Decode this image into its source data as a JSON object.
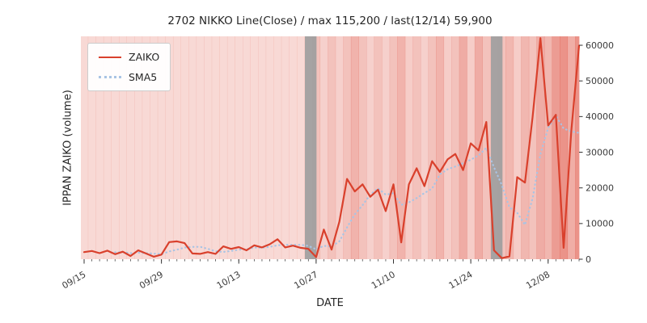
{
  "chart_data": {
    "type": "line",
    "title": "2702 NIKKO Line(Close) / max 115,200 / last(12/14) 59,900",
    "xlabel": "DATE",
    "ylabel": "IPPAN ZAIKO (volume)",
    "ylim": [
      0,
      62500
    ],
    "yticks": [
      0,
      10000,
      20000,
      30000,
      40000,
      50000,
      60000
    ],
    "xtick_indices": [
      0,
      10,
      20,
      30,
      40,
      50,
      60
    ],
    "grid": false,
    "legend_position": "upper-left",
    "x": [
      "09/15",
      "09/16",
      "09/17",
      "09/20",
      "09/21",
      "09/22",
      "09/23",
      "09/24",
      "09/27",
      "09/28",
      "09/29",
      "09/30",
      "10/01",
      "10/04",
      "10/05",
      "10/06",
      "10/07",
      "10/08",
      "10/11",
      "10/12",
      "10/13",
      "10/14",
      "10/15",
      "10/18",
      "10/19",
      "10/20",
      "10/21",
      "10/22",
      "10/25",
      "10/26",
      "10/27",
      "10/28",
      "10/29",
      "11/01",
      "11/02",
      "11/03",
      "11/04",
      "11/05",
      "11/08",
      "11/09",
      "11/10",
      "11/11",
      "11/12",
      "11/15",
      "11/16",
      "11/17",
      "11/18",
      "11/19",
      "11/22",
      "11/23",
      "11/24",
      "11/25",
      "11/26",
      "11/29",
      "11/30",
      "12/01",
      "12/02",
      "12/03",
      "12/06",
      "12/07",
      "12/08",
      "12/09",
      "12/10",
      "12/13",
      "12/14"
    ],
    "series": [
      {
        "name": "ZAIKO",
        "color": "#d9402c",
        "style": "solid",
        "values": [
          2000,
          2300,
          1700,
          2400,
          1400,
          2100,
          900,
          2500,
          1600,
          700,
          1300,
          4800,
          5000,
          4500,
          1600,
          1500,
          2000,
          1500,
          3600,
          2900,
          3400,
          2500,
          3900,
          3300,
          4200,
          5600,
          3300,
          3800,
          3200,
          2900,
          600,
          8300,
          2700,
          10500,
          22500,
          19000,
          21000,
          17500,
          19500,
          13500,
          21000,
          4700,
          21000,
          25500,
          20500,
          27500,
          24500,
          28000,
          29500,
          25000,
          32500,
          30500,
          38500,
          2500,
          300,
          800,
          23000,
          21500,
          40000,
          62000,
          37500,
          40500,
          3200,
          36000,
          59900
        ]
      },
      {
        "name": "SMA5",
        "color": "#a9c4e4",
        "style": "dotted",
        "values": [
          null,
          null,
          null,
          null,
          1960,
          1980,
          1700,
          1860,
          1700,
          1560,
          1400,
          2180,
          2680,
          3260,
          3440,
          3480,
          2920,
          2220,
          2040,
          2300,
          2680,
          2780,
          3260,
          3200,
          3460,
          3900,
          4060,
          4040,
          4020,
          3760,
          2760,
          3760,
          3540,
          5000,
          8920,
          12600,
          15140,
          18100,
          19900,
          18100,
          18500,
          15240,
          15940,
          17140,
          18540,
          19840,
          23800,
          25200,
          26000,
          26900,
          27900,
          29100,
          31200,
          25800,
          20860,
          14520,
          13020,
          9620,
          17120,
          29460,
          36800,
          40300,
          36640,
          35840,
          35420
        ]
      }
    ],
    "background": {
      "band_color": "#dd4b3a",
      "band_alphas": [
        0.21,
        0.21,
        0.21,
        0.21,
        0.21,
        0.21,
        0.21,
        0.21,
        0.21,
        0.21,
        0.21,
        0.21,
        0.21,
        0.21,
        0.21,
        0.21,
        0.21,
        0.21,
        0.21,
        0.21,
        0.21,
        0.21,
        0.21,
        0.21,
        0.21,
        0.21,
        0.21,
        0.21,
        0.21,
        0.21,
        0.34,
        0.26,
        0.34,
        0.26,
        0.34,
        0.42,
        0.34,
        0.26,
        0.34,
        0.26,
        0.34,
        0.42,
        0.28,
        0.34,
        0.26,
        0.34,
        0.42,
        0.28,
        0.34,
        0.46,
        0.28,
        0.46,
        0.34,
        0.28,
        0.34,
        0.4,
        0.28,
        0.4,
        0.34,
        0.46,
        0.4,
        0.55,
        0.6,
        0.45,
        0.6
      ],
      "gray_bands": [
        {
          "from": 28.55,
          "to": 30.05
        },
        {
          "from": 52.6,
          "to": 54.1
        }
      ],
      "gray_color": "#9e9e9e"
    }
  }
}
